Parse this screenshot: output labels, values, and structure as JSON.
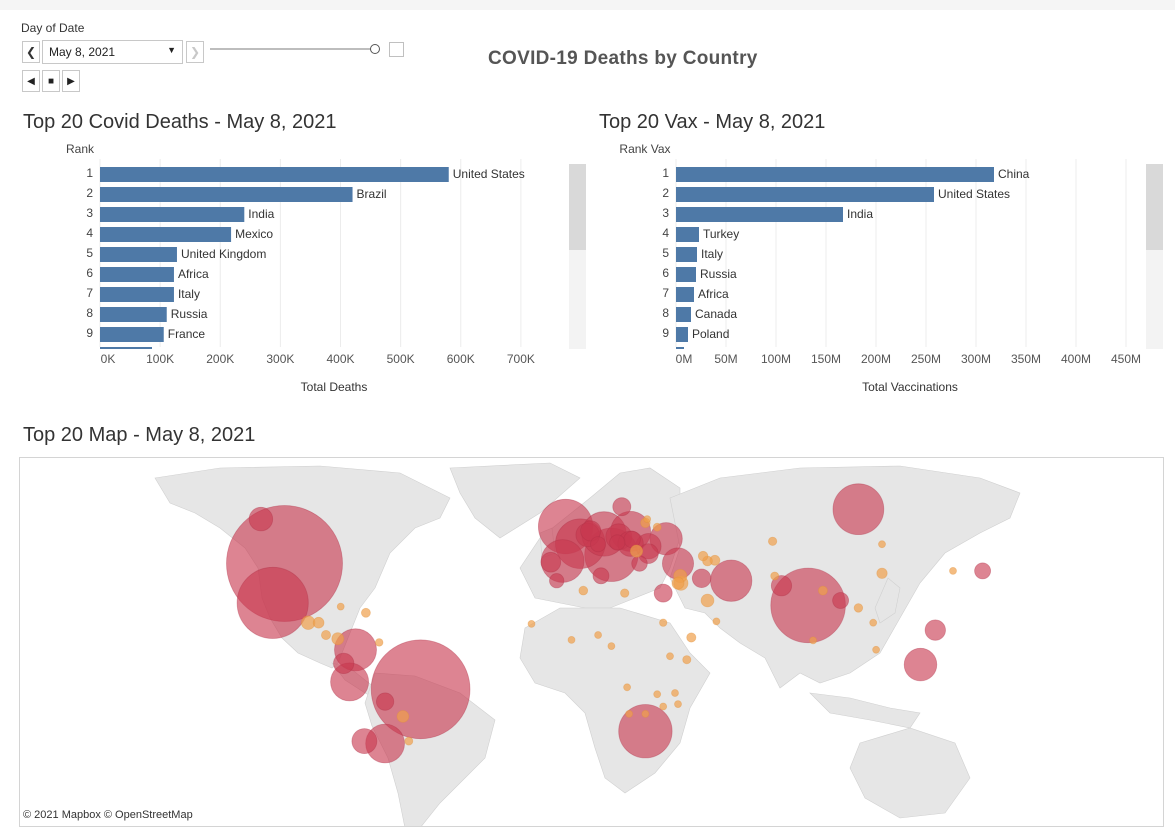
{
  "controls": {
    "label": "Day of Date",
    "date_value": "May 8, 2021",
    "prev_icon": "chevron-left-icon",
    "next_icon": "chevron-right-icon",
    "play_back_icon": "play-back-icon",
    "stop_icon": "stop-icon",
    "play_forward_icon": "play-forward-icon",
    "slider_position": 1.0
  },
  "dashboard_title": "COVID-19 Deaths by Country",
  "colors": {
    "bar": "#4e79a7",
    "bubble": "#c8394f",
    "bubble_small": "#f0a04b"
  },
  "deaths_panel": {
    "title": "Top 20 Covid Deaths - May 8, 2021"
  },
  "vax_panel": {
    "title": "Top 20 Vax - May 8, 2021"
  },
  "map_panel": {
    "title": "Top 20 Map - May 8, 2021",
    "attribution": "© 2021 Mapbox  © OpenStreetMap"
  },
  "chart_data": [
    {
      "type": "bar",
      "orientation": "horizontal",
      "rank_header": "Rank",
      "ranks": [
        "1",
        "2",
        "3",
        "4",
        "5",
        "6",
        "7",
        "8",
        "9"
      ],
      "categories": [
        "United States",
        "Brazil",
        "India",
        "Mexico",
        "United Kingdom",
        "Africa",
        "Italy",
        "Russia",
        "France"
      ],
      "values": [
        580000,
        420000,
        240000,
        218000,
        128000,
        123000,
        123000,
        111000,
        106000
      ],
      "xlabel": "Total Deaths",
      "ticks": [
        "0K",
        "100K",
        "200K",
        "300K",
        "400K",
        "500K",
        "600K",
        "700K"
      ],
      "tick_values": [
        0,
        100000,
        200000,
        300000,
        400000,
        500000,
        600000,
        700000
      ],
      "xlim": [
        0,
        780000
      ],
      "grid": true
    },
    {
      "type": "bar",
      "orientation": "horizontal",
      "rank_header": "Rank Vax",
      "ranks": [
        "1",
        "2",
        "3",
        "4",
        "5",
        "6",
        "7",
        "8",
        "9"
      ],
      "categories": [
        "China",
        "United States",
        "India",
        "Turkey",
        "Italy",
        "Russia",
        "Africa",
        "Canada",
        "Poland"
      ],
      "values": [
        318000000,
        258000000,
        167000000,
        23000000,
        21000000,
        20000000,
        18000000,
        15000000,
        12000000
      ],
      "xlabel": "Total Vaccinations",
      "ticks": [
        "0M",
        "50M",
        "100M",
        "150M",
        "200M",
        "250M",
        "300M",
        "350M",
        "400M",
        "450M"
      ],
      "tick_values": [
        0,
        50000000,
        100000000,
        150000000,
        200000000,
        250000000,
        300000000,
        350000000,
        400000000,
        450000000
      ],
      "xlim": [
        0,
        470000000
      ],
      "grid": true
    }
  ],
  "map_points": [
    {
      "country": "United States",
      "lon": -98,
      "lat": 39,
      "value": 580000
    },
    {
      "country": "Mexico",
      "lon": -102,
      "lat": 23,
      "value": 218000
    },
    {
      "country": "Brazil",
      "lon": -52,
      "lat": -12,
      "value": 420000
    },
    {
      "country": "India",
      "lon": 79,
      "lat": 22,
      "value": 240000
    },
    {
      "country": "Russia",
      "lon": 96,
      "lat": 61,
      "value": 111000
    },
    {
      "country": "United Kingdom",
      "lon": -3,
      "lat": 54,
      "value": 128000
    },
    {
      "country": "France",
      "lon": 2,
      "lat": 47,
      "value": 106000
    },
    {
      "country": "Italy",
      "lon": 12.5,
      "lat": 42.5,
      "value": 123000
    },
    {
      "country": "Germany",
      "lon": 10,
      "lat": 51,
      "value": 85000
    },
    {
      "country": "Spain",
      "lon": -4,
      "lat": 40,
      "value": 79000
    },
    {
      "country": "Poland",
      "lon": 19,
      "lat": 52,
      "value": 69000
    },
    {
      "country": "Ukraine",
      "lon": 31,
      "lat": 49,
      "value": 45000
    },
    {
      "country": "Colombia",
      "lon": -74,
      "lat": 4,
      "value": 76000
    },
    {
      "country": "Argentina",
      "lon": -64,
      "lat": -34,
      "value": 65000
    },
    {
      "country": "Peru",
      "lon": -76,
      "lat": -9,
      "value": 62000
    },
    {
      "country": "Iran",
      "lon": 53,
      "lat": 32,
      "value": 74000
    },
    {
      "country": "Africa",
      "lon": 24,
      "lat": -29,
      "value": 123000
    },
    {
      "country": "Indonesia",
      "lon": 117,
      "lat": -2,
      "value": 46000
    },
    {
      "country": "Turkey",
      "lon": 35,
      "lat": 39,
      "value": 42000
    },
    {
      "country": "Canada",
      "lon": -106,
      "lat": 57,
      "value": 24000
    },
    {
      "country": "Czechia",
      "lon": 15,
      "lat": 49.8,
      "value": 29000
    },
    {
      "country": "Romania",
      "lon": 25,
      "lat": 46,
      "value": 28000
    },
    {
      "country": "Chile",
      "lon": -71,
      "lat": -33,
      "value": 27000
    },
    {
      "country": "Philippines",
      "lon": 122,
      "lat": 12,
      "value": 18000
    },
    {
      "country": "Belgium",
      "lon": 4.5,
      "lat": 50.6,
      "value": 24000
    },
    {
      "country": "Ecuador",
      "lon": -78,
      "lat": -1.5,
      "value": 18000
    },
    {
      "country": "Hungary",
      "lon": 19,
      "lat": 47,
      "value": 28000
    },
    {
      "country": "Sweden",
      "lon": 16,
      "lat": 62,
      "value": 14000
    },
    {
      "country": "Iraq",
      "lon": 43,
      "lat": 33,
      "value": 15000
    },
    {
      "country": "Egypt",
      "lon": 30,
      "lat": 27,
      "value": 14000
    },
    {
      "country": "Pakistan",
      "lon": 70,
      "lat": 30,
      "value": 18000
    },
    {
      "country": "Bolivia",
      "lon": -64,
      "lat": -17,
      "value": 13000
    },
    {
      "country": "Japan",
      "lon": 138,
      "lat": 36,
      "value": 11000
    },
    {
      "country": "Bulgaria",
      "lon": 25,
      "lat": 43,
      "value": 17000
    },
    {
      "country": "Portugal",
      "lon": -8,
      "lat": 39.5,
      "value": 17000
    },
    {
      "country": "Bangladesh",
      "lon": 90,
      "lat": 24,
      "value": 11000
    },
    {
      "country": "Guatemala",
      "lon": -90,
      "lat": 15,
      "value": 8000
    },
    {
      "country": "Honduras",
      "lon": -86.5,
      "lat": 15,
      "value": 5000
    },
    {
      "country": "Cuba",
      "lon": -79,
      "lat": 21.5,
      "value": 600
    },
    {
      "country": "Venezuela",
      "lon": -66,
      "lat": 7,
      "value": 2500
    },
    {
      "country": "Morocco",
      "lon": -6,
      "lat": 32,
      "value": 9000
    },
    {
      "country": "Tunisia",
      "lon": 9,
      "lat": 34,
      "value": 11000
    },
    {
      "country": "Algeria",
      "lon": 3,
      "lat": 28,
      "value": 3300
    },
    {
      "country": "Ethiopia",
      "lon": 39.5,
      "lat": 9,
      "value": 3700
    },
    {
      "country": "Kenya",
      "lon": 38,
      "lat": 0,
      "value": 2900
    },
    {
      "country": "Nigeria",
      "lon": 8,
      "lat": 10,
      "value": 2000
    },
    {
      "country": "Saudi Arabia",
      "lon": 45,
      "lat": 24,
      "value": 7000
    },
    {
      "country": "Myanmar",
      "lon": 96,
      "lat": 21,
      "value": 3200
    },
    {
      "country": "Nepal",
      "lon": 84,
      "lat": 28,
      "value": 3500
    },
    {
      "country": "Kazakhstan",
      "lon": 67,
      "lat": 48,
      "value": 3000
    },
    {
      "country": "China",
      "lon": 104,
      "lat": 35,
      "value": 4600
    },
    {
      "country": "South Korea",
      "lon": 128,
      "lat": 36,
      "value": 1800
    },
    {
      "country": "Malaysia",
      "lon": 102,
      "lat": 4,
      "value": 1700
    },
    {
      "country": "Zambia",
      "lon": 28,
      "lat": -14,
      "value": 1300
    },
    {
      "country": "Mozambique",
      "lon": 35,
      "lat": -18,
      "value": 800
    },
    {
      "country": "Zimbabwe",
      "lon": 30,
      "lat": -19,
      "value": 1500
    },
    {
      "country": "Paraguay",
      "lon": -58,
      "lat": -23,
      "value": 6000
    },
    {
      "country": "Uruguay",
      "lon": -56,
      "lat": -33,
      "value": 2800
    },
    {
      "country": "Panama",
      "lon": -80,
      "lat": 8.5,
      "value": 6200
    },
    {
      "country": "Costa Rica",
      "lon": -84,
      "lat": 10,
      "value": 3600
    },
    {
      "country": "Dominican Republic",
      "lon": -70.5,
      "lat": 19,
      "value": 3500
    },
    {
      "country": "Israel",
      "lon": 35,
      "lat": 31,
      "value": 6300
    },
    {
      "country": "Jordan",
      "lon": 36,
      "lat": 31,
      "value": 8600
    },
    {
      "country": "Lebanon",
      "lon": 35.8,
      "lat": 33.9,
      "value": 7500
    },
    {
      "country": "Greece",
      "lon": 22,
      "lat": 39,
      "value": 10500
    },
    {
      "country": "Austria",
      "lon": 14.5,
      "lat": 47.5,
      "value": 10300
    },
    {
      "country": "Switzerland",
      "lon": 8,
      "lat": 46.8,
      "value": 10000
    },
    {
      "country": "Netherlands",
      "lon": 5.5,
      "lat": 52.2,
      "value": 17500
    },
    {
      "country": "Serbia",
      "lon": 21,
      "lat": 44,
      "value": 6500
    },
    {
      "country": "Slovakia",
      "lon": 19.5,
      "lat": 48.7,
      "value": 12000
    },
    {
      "country": "Belarus",
      "lon": 28,
      "lat": 53.7,
      "value": 2700
    },
    {
      "country": "Lithuania",
      "lon": 24,
      "lat": 55.5,
      "value": 4000
    },
    {
      "country": "Latvia",
      "lon": 24.6,
      "lat": 57,
      "value": 2000
    },
    {
      "country": "Georgia",
      "lon": 43.5,
      "lat": 42,
      "value": 4000
    },
    {
      "country": "Armenia",
      "lon": 45,
      "lat": 40,
      "value": 4200
    },
    {
      "country": "Azerbaijan",
      "lon": 47.5,
      "lat": 40.3,
      "value": 4300
    },
    {
      "country": "Libya",
      "lon": 17,
      "lat": 27,
      "value": 3000
    },
    {
      "country": "Sudan",
      "lon": 30,
      "lat": 15,
      "value": 2400
    },
    {
      "country": "Yemen",
      "lon": 48,
      "lat": 15.5,
      "value": 1200
    },
    {
      "country": "Ghana",
      "lon": -1,
      "lat": 8,
      "value": 800
    },
    {
      "country": "Cameroon",
      "lon": 12.5,
      "lat": 5.5,
      "value": 600
    },
    {
      "country": "Senegal",
      "lon": -14.5,
      "lat": 14.5,
      "value": 1100
    },
    {
      "country": "Sri Lanka",
      "lon": 80.7,
      "lat": 7.8,
      "value": 700
    },
    {
      "country": "Thailand",
      "lon": 101,
      "lat": 15,
      "value": 400
    },
    {
      "country": "Mongolia",
      "lon": 104,
      "lat": 46.8,
      "value": 100
    },
    {
      "country": "Namibia",
      "lon": 18.5,
      "lat": -22,
      "value": 700
    },
    {
      "country": "Botswana",
      "lon": 24,
      "lat": -22,
      "value": 800
    },
    {
      "country": "Malawi",
      "lon": 34,
      "lat": -13.5,
      "value": 1100
    },
    {
      "country": "Uganda",
      "lon": 32.3,
      "lat": 1.4,
      "value": 350
    },
    {
      "country": "Angola",
      "lon": 17.8,
      "lat": -11.2,
      "value": 600
    },
    {
      "country": "Afghanistan",
      "lon": 67.7,
      "lat": 33.9,
      "value": 2700
    }
  ]
}
